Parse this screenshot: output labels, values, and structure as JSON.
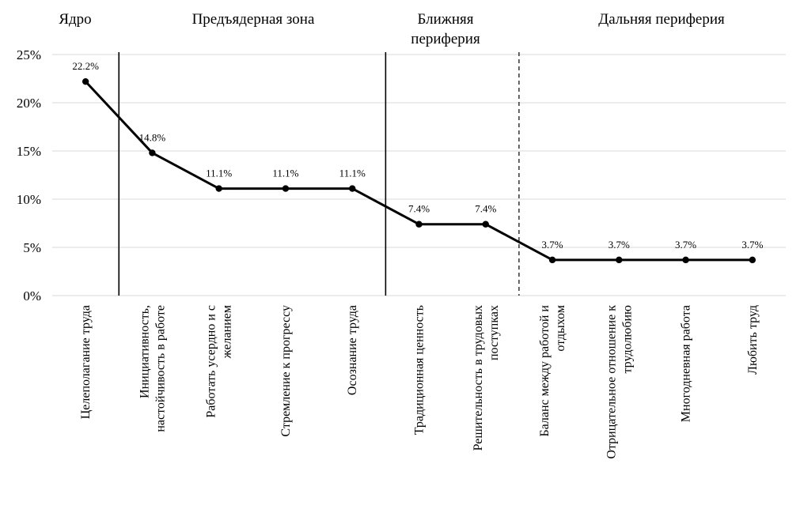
{
  "chart_data": {
    "type": "line",
    "categories": [
      [
        "Целеполагание труда"
      ],
      [
        "Инициативность,",
        "настойчивость в работе"
      ],
      [
        "Работать усердно и с",
        "желанием"
      ],
      [
        "Стремление к прогрессу"
      ],
      [
        "Осознание труда"
      ],
      [
        "Традиционная ценность"
      ],
      [
        "Решительность в трудовых",
        "поступках"
      ],
      [
        "Баланс между работой и",
        "отдыхом"
      ],
      [
        "Отрицательное отношение к",
        "трудолюбию"
      ],
      [
        "Многодневная работа"
      ],
      [
        "Любить труд"
      ]
    ],
    "values": [
      22.2,
      14.8,
      11.1,
      11.1,
      11.1,
      7.4,
      7.4,
      3.7,
      3.7,
      3.7,
      3.7
    ],
    "data_labels": [
      "22.2%",
      "14.8%",
      "11.1%",
      "11.1%",
      "11.1%",
      "7.4%",
      "7.4%",
      "3.7%",
      "3.7%",
      "3.7%",
      "3.7%"
    ],
    "y_ticks": [
      0,
      5,
      10,
      15,
      20,
      25
    ],
    "y_tick_labels": [
      "0%",
      "5%",
      "10%",
      "15%",
      "20%",
      "25%"
    ],
    "ylim": [
      0,
      25
    ],
    "grid": true,
    "zones": [
      {
        "lines": [
          "Ядро"
        ]
      },
      {
        "lines": [
          "Предъядерная зона"
        ]
      },
      {
        "lines": [
          "Ближняя",
          "периферия"
        ]
      },
      {
        "lines": [
          "Дальняя периферия"
        ]
      }
    ],
    "dividers": [
      {
        "between": [
          0,
          1
        ],
        "style": "solid"
      },
      {
        "between": [
          4,
          5
        ],
        "style": "solid"
      },
      {
        "between": [
          6,
          7
        ],
        "style": "dashed"
      }
    ],
    "colors": {
      "line": "#000000",
      "grid": "#d9d9d9"
    }
  }
}
